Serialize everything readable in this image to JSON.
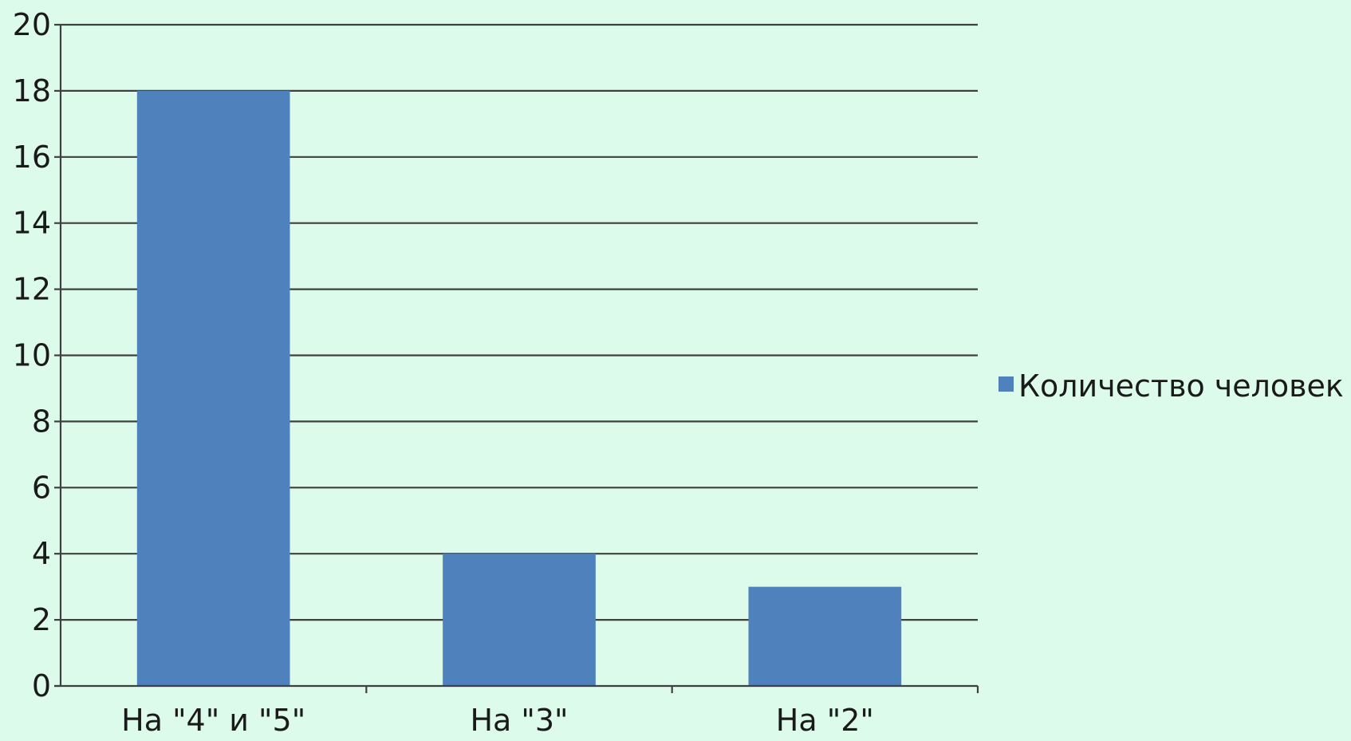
{
  "chart_data": {
    "type": "bar",
    "title": "",
    "xlabel": "",
    "ylabel": "",
    "categories": [
      "На \"4\" и \"5\"",
      "На \"3\"",
      "На \"2\""
    ],
    "series": [
      {
        "name": "Количество человек",
        "values": [
          18,
          4,
          3
        ],
        "color": "#4f81bd"
      }
    ],
    "ylim": [
      0,
      20
    ],
    "yticks": [
      0,
      2,
      4,
      6,
      8,
      10,
      12,
      14,
      16,
      18,
      20
    ],
    "grid": true,
    "legend": "right",
    "colors": {
      "background": "#ddfbeb",
      "gridline": "#404040",
      "bar": "#4f81bd"
    }
  }
}
